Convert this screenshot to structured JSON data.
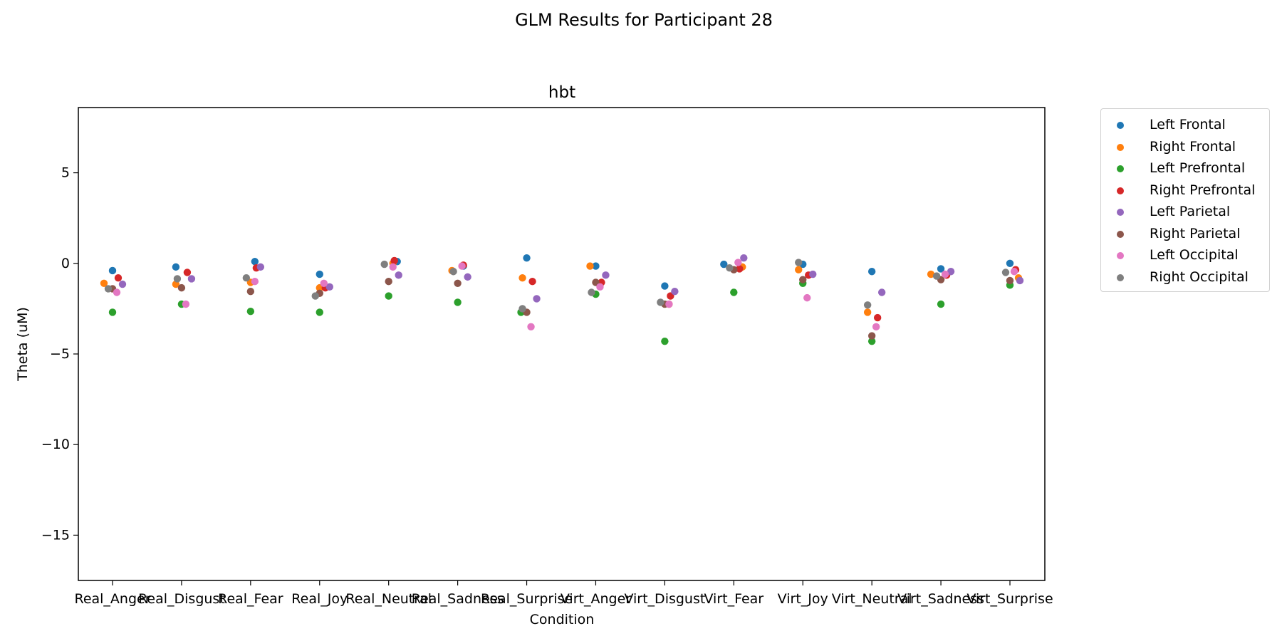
{
  "figure": {
    "suptitle": "GLM Results for Participant 28"
  },
  "chart_data": {
    "type": "scatter",
    "title": "hbt",
    "xlabel": "Condition",
    "ylabel": "Theta (uM)",
    "ylim": [
      -17.5,
      8.6
    ],
    "yticks": [
      5,
      0,
      -5,
      -10,
      -15
    ],
    "ytick_labels": [
      "5",
      "0",
      "−5",
      "−10",
      "−15"
    ],
    "grid": false,
    "legend_position": "outside-right",
    "categories": [
      "Real_Anger",
      "Real_Disgust",
      "Real_Fear",
      "Real_Joy",
      "Real_Neutral",
      "Real_Sadness",
      "Real_Surprise",
      "Virt_Anger",
      "Virt_Disgust",
      "Virt_Fear",
      "Virt_Joy",
      "Virt_Neutral",
      "Virt_Sadness",
      "Virt_Surprise"
    ],
    "series": [
      {
        "name": "Left Frontal",
        "color": "#1f77b4",
        "values": [
          -0.4,
          -0.2,
          0.1,
          -0.6,
          0.1,
          -0.15,
          0.3,
          -0.15,
          -1.25,
          -0.05,
          -0.05,
          -0.45,
          -0.3,
          0.0
        ],
        "offsets": [
          0,
          -8,
          6,
          0,
          12,
          8,
          0,
          0,
          0,
          -14,
          0,
          0,
          0,
          0
        ]
      },
      {
        "name": "Right Frontal",
        "color": "#ff7f0e",
        "values": [
          -1.1,
          -1.15,
          -1.05,
          -1.35,
          0.0,
          -0.4,
          -0.8,
          -0.15,
          -2.25,
          -0.2,
          -0.35,
          -2.7,
          -0.6,
          -0.8
        ],
        "offsets": [
          -12,
          -8,
          0,
          0,
          6,
          -8,
          -6,
          -8,
          6,
          12,
          -6,
          -6,
          -14,
          12
        ]
      },
      {
        "name": "Left Prefrontal",
        "color": "#2ca02c",
        "values": [
          -2.7,
          -2.25,
          -2.65,
          -2.7,
          -1.8,
          -2.15,
          -2.7,
          -1.7,
          -4.3,
          -1.6,
          -1.1,
          -4.3,
          -2.25,
          -1.2
        ],
        "offsets": [
          0,
          0,
          0,
          0,
          0,
          0,
          -8,
          0,
          0,
          0,
          0,
          0,
          0,
          0
        ]
      },
      {
        "name": "Right Prefrontal",
        "color": "#d62728",
        "values": [
          -0.8,
          -0.5,
          -0.25,
          -1.35,
          0.15,
          -0.1,
          -1.0,
          -1.05,
          -1.8,
          -0.3,
          -0.65,
          -3.0,
          -0.65,
          -0.35
        ]
      },
      {
        "name": "Left Parietal",
        "color": "#9467bd",
        "values": [
          -1.15,
          -0.85,
          -0.2,
          -1.3,
          -0.65,
          -0.75,
          -1.95,
          -0.65,
          -1.55,
          0.3,
          -0.6,
          -1.6,
          -0.45,
          -0.95
        ]
      },
      {
        "name": "Right Parietal",
        "color": "#8c564b",
        "values": [
          -1.4,
          -1.35,
          -1.55,
          -1.65,
          -1.0,
          -1.1,
          -2.7,
          -1.05,
          -2.25,
          -0.35,
          -0.9,
          -4.0,
          -0.9,
          -0.95
        ]
      },
      {
        "name": "Left Occipital",
        "color": "#e377c2",
        "values": [
          -1.6,
          -2.25,
          -1.0,
          -1.1,
          -0.2,
          -0.15,
          -3.5,
          -1.3,
          -2.25,
          0.05,
          -1.9,
          -3.5,
          -0.6,
          -0.45
        ]
      },
      {
        "name": "Right Occipital",
        "color": "#7f7f7f",
        "values": [
          -1.4,
          -0.85,
          -0.8,
          -1.8,
          -0.05,
          -0.45,
          -2.5,
          -1.6,
          -2.15,
          -0.25,
          0.05,
          -2.3,
          -0.7,
          -0.5
        ]
      }
    ]
  }
}
